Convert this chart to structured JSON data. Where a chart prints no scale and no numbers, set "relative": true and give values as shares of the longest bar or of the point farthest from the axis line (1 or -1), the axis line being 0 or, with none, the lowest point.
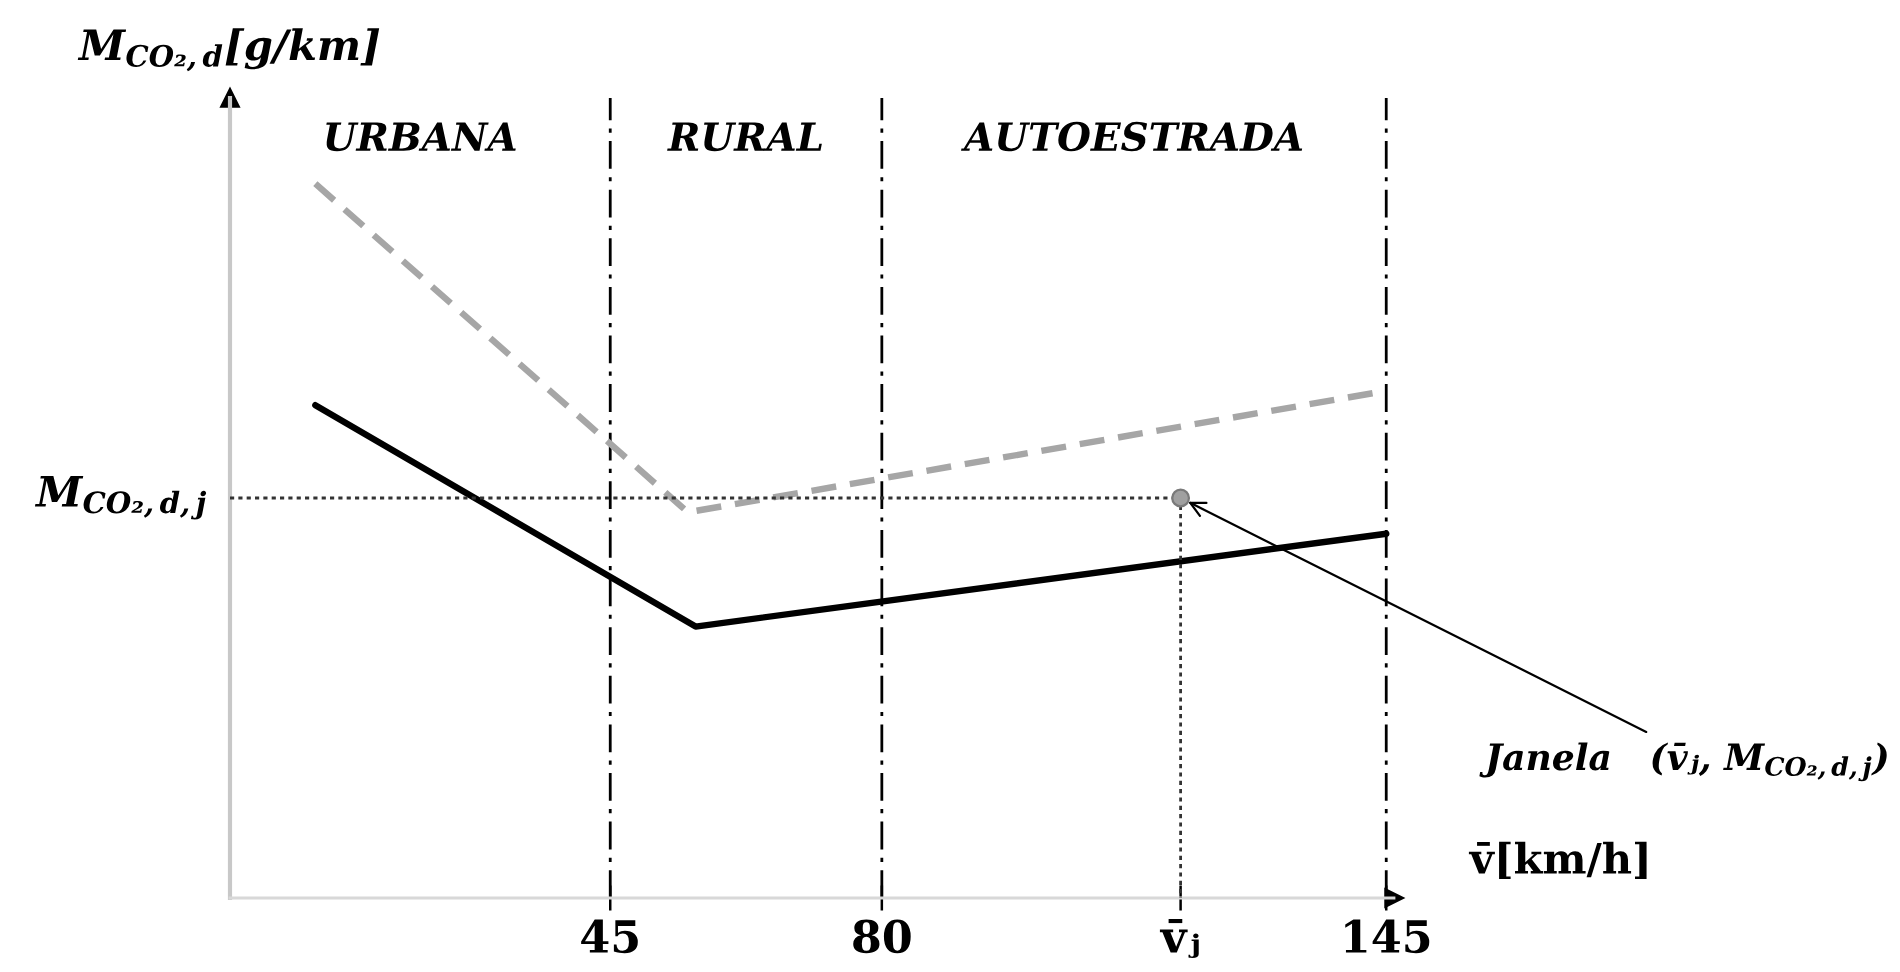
{
  "chart_data": {
    "type": "line",
    "relative": true,
    "xlabel": "v̄[km/h]",
    "ylabel": "M$_{CO₂,d}$[g/km]",
    "xlim": [
      -4,
      146
    ],
    "xticks": [
      45,
      80,
      {
        "value": 118.5,
        "label": "v̄ⱼ"
      },
      145
    ],
    "series": [
      {
        "color": "#000000",
        "line_style": "solid",
        "x": [
          7,
          56,
          145
        ],
        "values": [
          0.69,
          0.38,
          0.51
        ]
      },
      {
        "color": "#a6a6a6",
        "line_style": "dashed",
        "x": [
          7,
          55,
          145
        ],
        "values": [
          1,
          0.54,
          0.71
        ]
      },
      {
        "color": "#333333",
        "line_style": "dotted",
        "x": [
          -4,
          118.5,
          118.5
        ],
        "values": [
          0.56,
          0.56,
          0
        ]
      },
      {
        "type": "scatter",
        "color": "#a0a0a0",
        "marker": "circle",
        "x": [
          118.5
        ],
        "values": [
          0.56
        ]
      }
    ],
    "ref_lines": [
      {
        "axis": "x",
        "value": 45
      },
      {
        "axis": "x",
        "value": 80
      },
      {
        "axis": "x",
        "value": 145
      }
    ],
    "annotations": [
      "URBANA",
      "RURAL",
      "AUTOESTRADA",
      {
        "text": "M$_{CO₂,d,j}$",
        "x": -4,
        "y": 0.56
      },
      {
        "text": "Janela   (v̄ⱼ, M$_{CO₂,d,j}$)",
        "x": 118.5,
        "y": 0.56
      }
    ]
  }
}
